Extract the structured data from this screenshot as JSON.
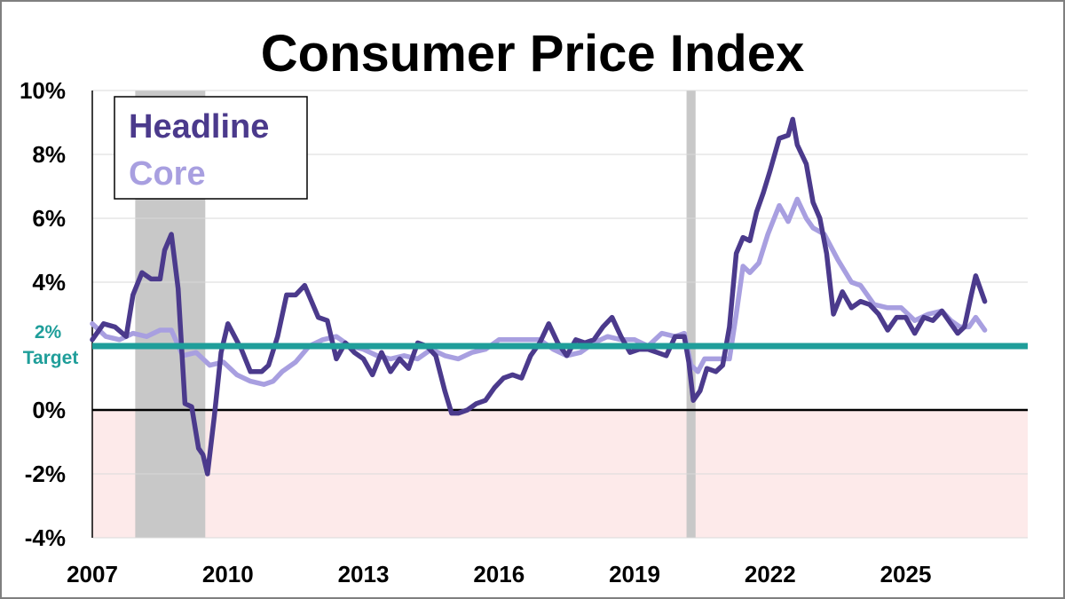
{
  "chart_data": {
    "type": "line",
    "title": "Consumer Price Index",
    "xlabel": "",
    "ylabel": "",
    "xlim": [
      2007,
      2027.7
    ],
    "ylim": [
      -4,
      10
    ],
    "x_ticks": [
      {
        "value": 2007,
        "label": "2007"
      },
      {
        "value": 2010,
        "label": "2010"
      },
      {
        "value": 2013,
        "label": "2013"
      },
      {
        "value": 2016,
        "label": "2016"
      },
      {
        "value": 2019,
        "label": "2019"
      },
      {
        "value": 2022,
        "label": "2022"
      },
      {
        "value": 2025,
        "label": "2025"
      }
    ],
    "y_ticks": [
      {
        "value": -4,
        "label": "-4%"
      },
      {
        "value": -2,
        "label": "-2%"
      },
      {
        "value": 0,
        "label": "0%"
      },
      {
        "value": 4,
        "label": "4%"
      },
      {
        "value": 6,
        "label": "6%"
      },
      {
        "value": 8,
        "label": "8%"
      },
      {
        "value": 10,
        "label": "10%"
      }
    ],
    "grid": true,
    "legend_position": "top-left",
    "target": {
      "value": 2.0,
      "label_line1": "2%",
      "label_line2": "Target",
      "color": "#1f9e9a"
    },
    "negative_region_color": "#fdeaea",
    "recessions": [
      {
        "start": 2007.95,
        "end": 2009.5
      },
      {
        "start": 2020.15,
        "end": 2020.35
      }
    ],
    "recession_color": "#c8c8c8",
    "series": [
      {
        "name": "Headline",
        "color": "#4b3a8c",
        "x": [
          2007.0,
          2007.25,
          2007.5,
          2007.75,
          2007.9,
          2008.1,
          2008.3,
          2008.5,
          2008.6,
          2008.75,
          2008.9,
          2009.05,
          2009.2,
          2009.35,
          2009.45,
          2009.55,
          2009.7,
          2009.85,
          2010.0,
          2010.15,
          2010.3,
          2010.5,
          2010.75,
          2010.9,
          2011.1,
          2011.3,
          2011.5,
          2011.7,
          2011.85,
          2012.0,
          2012.2,
          2012.4,
          2012.6,
          2012.8,
          2013.0,
          2013.2,
          2013.4,
          2013.6,
          2013.8,
          2014.0,
          2014.2,
          2014.4,
          2014.6,
          2014.8,
          2014.95,
          2015.1,
          2015.3,
          2015.5,
          2015.7,
          2015.9,
          2016.1,
          2016.3,
          2016.5,
          2016.7,
          2016.9,
          2017.1,
          2017.3,
          2017.5,
          2017.7,
          2017.9,
          2018.1,
          2018.3,
          2018.5,
          2018.7,
          2018.9,
          2019.1,
          2019.3,
          2019.5,
          2019.7,
          2019.9,
          2020.1,
          2020.2,
          2020.3,
          2020.45,
          2020.6,
          2020.8,
          2020.95,
          2021.1,
          2021.25,
          2021.4,
          2021.55,
          2021.7,
          2021.85,
          2022.0,
          2022.2,
          2022.4,
          2022.5,
          2022.6,
          2022.8,
          2022.95,
          2023.1,
          2023.25,
          2023.4,
          2023.6,
          2023.8,
          2024.0,
          2024.2,
          2024.4,
          2024.6,
          2024.8,
          2025.0,
          2025.2,
          2025.4,
          2025.6,
          2025.8,
          2026.0,
          2026.15,
          2026.3,
          2026.45,
          2026.55,
          2026.75
        ],
        "values": [
          2.2,
          2.7,
          2.6,
          2.3,
          3.6,
          4.3,
          4.1,
          4.1,
          5.0,
          5.5,
          3.8,
          0.2,
          0.1,
          -1.2,
          -1.4,
          -2.0,
          -0.2,
          1.8,
          2.7,
          2.3,
          1.9,
          1.2,
          1.2,
          1.4,
          2.3,
          3.6,
          3.6,
          3.9,
          3.4,
          2.9,
          2.8,
          1.6,
          2.1,
          1.8,
          1.6,
          1.1,
          1.8,
          1.2,
          1.6,
          1.3,
          2.1,
          2.0,
          1.7,
          0.6,
          -0.1,
          -0.1,
          0.0,
          0.2,
          0.3,
          0.7,
          1.0,
          1.1,
          1.0,
          1.7,
          2.1,
          2.7,
          2.1,
          1.7,
          2.2,
          2.1,
          2.2,
          2.6,
          2.9,
          2.3,
          1.8,
          1.9,
          1.9,
          1.8,
          1.7,
          2.3,
          2.3,
          1.5,
          0.3,
          0.6,
          1.3,
          1.2,
          1.4,
          2.6,
          4.9,
          5.4,
          5.3,
          6.2,
          6.8,
          7.5,
          8.5,
          8.6,
          9.1,
          8.3,
          7.7,
          6.5,
          6.0,
          4.9,
          3.0,
          3.7,
          3.2,
          3.4,
          3.3,
          3.0,
          2.5,
          2.9,
          2.9,
          2.4,
          2.9,
          2.8,
          3.1,
          2.7,
          2.4,
          2.6,
          3.6,
          4.2,
          3.4
        ]
      },
      {
        "name": "Core",
        "color": "#a89fe0",
        "x": [
          2007.0,
          2007.3,
          2007.6,
          2007.9,
          2008.2,
          2008.5,
          2008.75,
          2009.0,
          2009.3,
          2009.6,
          2009.9,
          2010.2,
          2010.5,
          2010.8,
          2011.0,
          2011.2,
          2011.5,
          2011.8,
          2012.1,
          2012.4,
          2012.7,
          2013.0,
          2013.3,
          2013.6,
          2013.9,
          2014.2,
          2014.5,
          2014.8,
          2015.1,
          2015.4,
          2015.7,
          2016.0,
          2016.3,
          2016.6,
          2016.9,
          2017.2,
          2017.5,
          2017.8,
          2018.1,
          2018.4,
          2018.7,
          2019.0,
          2019.3,
          2019.6,
          2019.9,
          2020.1,
          2020.25,
          2020.4,
          2020.55,
          2020.75,
          2020.95,
          2021.1,
          2021.25,
          2021.4,
          2021.55,
          2021.75,
          2021.95,
          2022.2,
          2022.4,
          2022.6,
          2022.8,
          2022.95,
          2023.2,
          2023.5,
          2023.8,
          2024.0,
          2024.3,
          2024.6,
          2024.9,
          2025.2,
          2025.5,
          2025.8,
          2026.0,
          2026.2,
          2026.4,
          2026.55,
          2026.75
        ],
        "values": [
          2.7,
          2.3,
          2.2,
          2.4,
          2.3,
          2.5,
          2.5,
          1.7,
          1.8,
          1.4,
          1.5,
          1.1,
          0.9,
          0.8,
          0.9,
          1.2,
          1.5,
          2.0,
          2.2,
          2.3,
          2.0,
          1.9,
          1.7,
          1.6,
          1.7,
          1.6,
          1.9,
          1.7,
          1.6,
          1.8,
          1.9,
          2.2,
          2.2,
          2.2,
          2.2,
          1.9,
          1.7,
          1.8,
          2.1,
          2.3,
          2.2,
          2.2,
          2.0,
          2.4,
          2.3,
          2.4,
          1.4,
          1.2,
          1.6,
          1.6,
          1.6,
          1.6,
          3.0,
          4.5,
          4.3,
          4.6,
          5.5,
          6.4,
          5.9,
          6.6,
          6.0,
          5.7,
          5.5,
          4.7,
          4.0,
          3.9,
          3.3,
          3.2,
          3.2,
          2.8,
          3.0,
          3.1,
          2.8,
          2.6,
          2.6,
          2.9,
          2.5
        ]
      }
    ]
  }
}
